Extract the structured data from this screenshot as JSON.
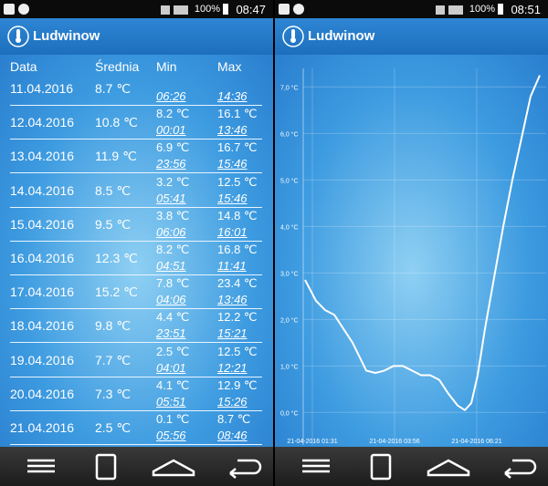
{
  "left": {
    "status": {
      "battery": "100%",
      "time": "08:47"
    },
    "app_title": "Ludwinow",
    "table": {
      "headers": [
        "Data",
        "Średnia",
        "Min",
        "Max"
      ],
      "rows": [
        {
          "date": "11.04.2016",
          "avg": "8.7 ℃",
          "min_time": "06:26",
          "max_time": "14:36"
        },
        {
          "date": "12.04.2016",
          "avg": "10.8 ℃",
          "min": "8.2 ℃",
          "min_time": "00:01",
          "max": "16.1 ℃",
          "max_time": "13:46"
        },
        {
          "date": "13.04.2016",
          "avg": "11.9 ℃",
          "min": "6.9 ℃",
          "min_time": "23:56",
          "max": "16.7 ℃",
          "max_time": "15:46"
        },
        {
          "date": "14.04.2016",
          "avg": "8.5 ℃",
          "min": "3.2 ℃",
          "min_time": "05:41",
          "max": "12.5 ℃",
          "max_time": "15:46"
        },
        {
          "date": "15.04.2016",
          "avg": "9.5 ℃",
          "min": "3.8 ℃",
          "min_time": "06:06",
          "max": "14.8 ℃",
          "max_time": "16:01"
        },
        {
          "date": "16.04.2016",
          "avg": "12.3 ℃",
          "min": "8.2 ℃",
          "min_time": "04:51",
          "max": "16.8 ℃",
          "max_time": "11:41"
        },
        {
          "date": "17.04.2016",
          "avg": "15.2 ℃",
          "min": "7.8 ℃",
          "min_time": "04:06",
          "max": "23.4 ℃",
          "max_time": "13:46"
        },
        {
          "date": "18.04.2016",
          "avg": "9.8 ℃",
          "min": "4.4 ℃",
          "min_time": "23:51",
          "max": "12.2 ℃",
          "max_time": "15:21"
        },
        {
          "date": "19.04.2016",
          "avg": "7.7 ℃",
          "min": "2.5 ℃",
          "min_time": "04:01",
          "max": "12.5 ℃",
          "max_time": "12:21"
        },
        {
          "date": "20.04.2016",
          "avg": "7.3 ℃",
          "min": "4.1 ℃",
          "min_time": "05:51",
          "max": "12.9 ℃",
          "max_time": "15:26"
        },
        {
          "date": "21.04.2016",
          "avg": "2.5 ℃",
          "min": "0.1 ℃",
          "min_time": "05:56",
          "max": "8.7 ℃",
          "max_time": "08:46"
        }
      ]
    }
  },
  "right": {
    "status": {
      "battery": "100%",
      "time": "08:51"
    },
    "app_title": "Ludwinow"
  },
  "chart_data": {
    "type": "line",
    "x": [
      1.302,
      1.624,
      1.893,
      2.161,
      2.43,
      2.698,
      2.967,
      3.101,
      3.369,
      3.638,
      3.906,
      4.175,
      4.444,
      4.712,
      4.981,
      5.249,
      5.518,
      5.786,
      6.001,
      6.189,
      6.377,
      6.592,
      6.86,
      7.129,
      7.397,
      7.666,
      7.934,
      8.203
    ],
    "series": [
      {
        "color": "#ffffff",
        "values": [
          2.85,
          2.4,
          2.2,
          2.1,
          1.8,
          1.5,
          1.1,
          0.9,
          0.85,
          0.9,
          1.0,
          1.0,
          0.9,
          0.8,
          0.8,
          0.7,
          0.4,
          0.15,
          0.05,
          0.2,
          0.8,
          1.8,
          2.9,
          4.0,
          5.0,
          5.9,
          6.8,
          7.25
        ]
      }
    ],
    "xlim": [
      1.248,
      8.391
    ],
    "xticks": [
      {
        "value": 1.5167,
        "label": "21-04-2016 01:31"
      },
      {
        "value": 3.9333,
        "label": "21-04-2016 03:56"
      },
      {
        "value": 6.35,
        "label": "21-04-2016 06:21"
      }
    ],
    "ylim": [
      -0.7,
      7.4
    ],
    "yticks": [
      {
        "value": 0,
        "label": "0,0 °C"
      },
      {
        "value": 1,
        "label": "1,0 °C"
      },
      {
        "value": 2,
        "label": "2,0 °C"
      },
      {
        "value": 3,
        "label": "3,0 °C"
      },
      {
        "value": 4,
        "label": "4,0 °C"
      },
      {
        "value": 5,
        "label": "5,0 °C"
      },
      {
        "value": 6,
        "label": "6,0 °C"
      },
      {
        "value": 7,
        "label": "7,0 °C"
      }
    ],
    "grid": true
  }
}
